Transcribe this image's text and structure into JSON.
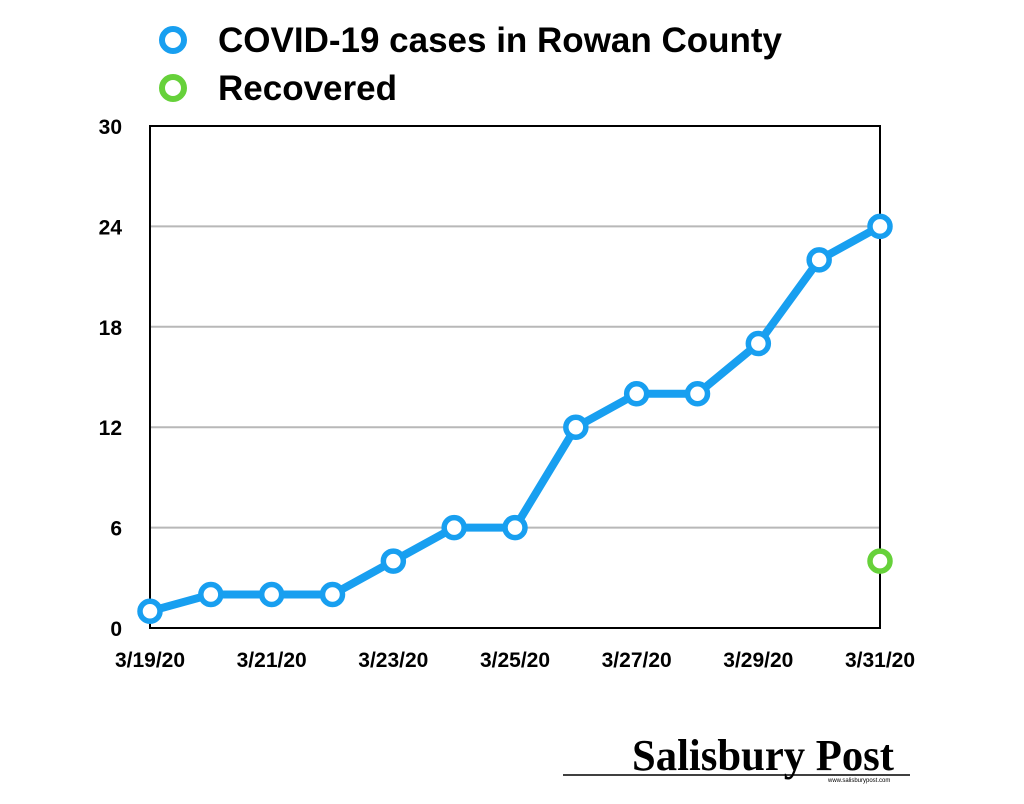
{
  "chart_data": {
    "type": "line",
    "categories": [
      "3/19/20",
      "3/20/20",
      "3/21/20",
      "3/22/20",
      "3/23/20",
      "3/24/20",
      "3/25/20",
      "3/26/20",
      "3/27/20",
      "3/28/20",
      "3/29/20",
      "3/30/20",
      "3/31/20"
    ],
    "x_tick_labels": [
      "3/19/20",
      "3/21/20",
      "3/23/20",
      "3/25/20",
      "3/27/20",
      "3/29/20",
      "3/31/20"
    ],
    "y_ticks": [
      0,
      6,
      12,
      18,
      24,
      30
    ],
    "ylim": [
      0,
      30
    ],
    "grid": "horizontal",
    "legend_position": "top",
    "series": [
      {
        "name": "COVID-19 cases in Rowan County",
        "color": "#189ff0",
        "values": [
          1,
          2,
          2,
          2,
          4,
          6,
          6,
          12,
          14,
          14,
          17,
          22,
          24
        ]
      },
      {
        "name": "Recovered",
        "color": "#66d13a",
        "values": [
          null,
          null,
          null,
          null,
          null,
          null,
          null,
          null,
          null,
          null,
          null,
          null,
          4
        ]
      }
    ],
    "title": "",
    "xlabel": "",
    "ylabel": ""
  },
  "branding": {
    "logo_text": "Salisbury Post",
    "logo_url_text": "www.salisburypost.com"
  }
}
